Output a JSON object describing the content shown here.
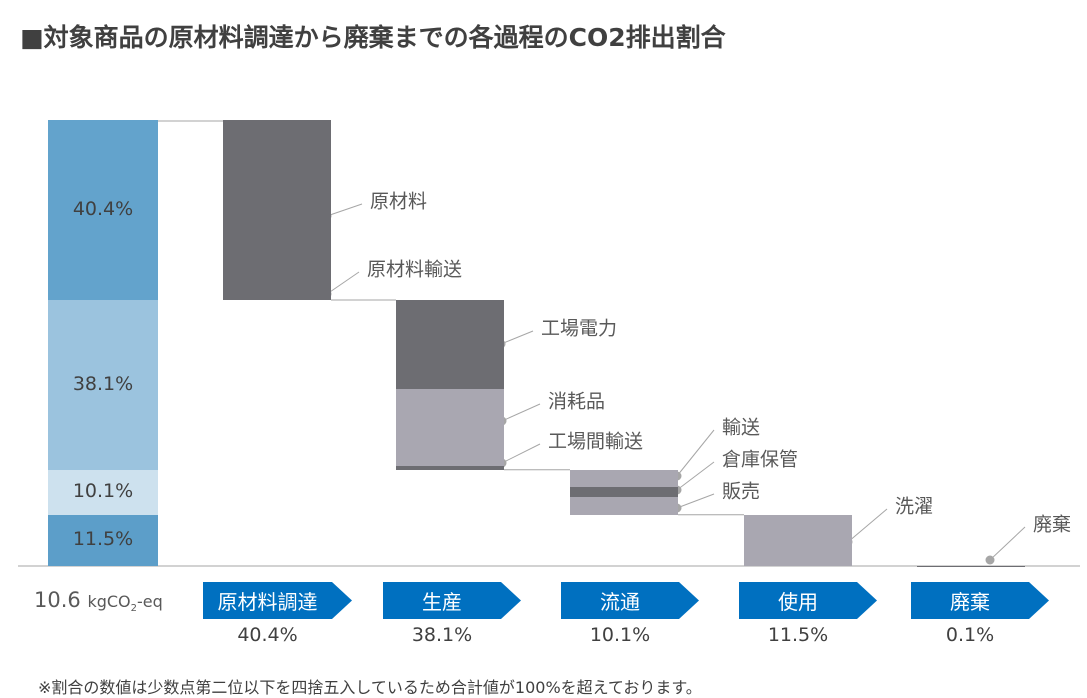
{
  "title": "■対象商品の原材料調達から廃棄までの各過程のCO2排出割合",
  "total": {
    "value": "10.6",
    "unit": "kgCO",
    "sub": "2",
    "suffix": "-eq"
  },
  "footnote": "※割合の数値は少数点第二位以下を四捨五入しているため合計値が100%を超えております。",
  "colors": {
    "stage": "#0070c0",
    "dark": "#6d6d72",
    "light": "#a9a7b1",
    "c1": "#63a3cc",
    "c2": "#9bc3de",
    "c3": "#cde1ee",
    "c4": "#5c9ec9"
  },
  "chart_data": {
    "type": "waterfall",
    "unit": "%",
    "total_bar": [
      {
        "label": "40.4%",
        "value": 40.4
      },
      {
        "label": "38.1%",
        "value": 38.1
      },
      {
        "label": "10.1%",
        "value": 10.1
      },
      {
        "label": "11.5%",
        "value": 11.5
      }
    ],
    "stages": [
      {
        "name": "原材料調達",
        "pct": "40.4%",
        "segments": [
          {
            "name": "原材料",
            "value": 39.9,
            "tone": "dark"
          },
          {
            "name": "原材料輸送",
            "value": 0.5,
            "tone": "dark"
          }
        ]
      },
      {
        "name": "生産",
        "pct": "38.1%",
        "segments": [
          {
            "name": "工場電力",
            "value": 20.0,
            "tone": "dark"
          },
          {
            "name": "消耗品",
            "value": 17.3,
            "tone": "light"
          },
          {
            "name": "工場間輸送",
            "value": 0.8,
            "tone": "dark"
          }
        ]
      },
      {
        "name": "流通",
        "pct": "10.1%",
        "segments": [
          {
            "name": "輸送",
            "value": 3.8,
            "tone": "light"
          },
          {
            "name": "倉庫保管",
            "value": 2.3,
            "tone": "dark"
          },
          {
            "name": "販売",
            "value": 4.0,
            "tone": "light"
          }
        ]
      },
      {
        "name": "使用",
        "pct": "11.5%",
        "segments": [
          {
            "name": "洗濯",
            "value": 11.5,
            "tone": "light"
          }
        ]
      },
      {
        "name": "廃棄",
        "pct": "0.1%",
        "segments": [
          {
            "name": "廃棄",
            "value": 0.1,
            "tone": "dark"
          }
        ]
      }
    ]
  }
}
